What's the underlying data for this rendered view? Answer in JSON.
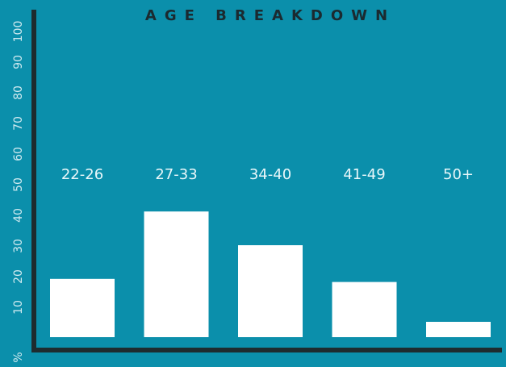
{
  "chart_data": {
    "type": "bar",
    "title": "AGE BREAKDOWN",
    "ylabel": "%",
    "categories": [
      "22-26",
      "27-33",
      "34-40",
      "41-49",
      "50+"
    ],
    "values": [
      19,
      41,
      30,
      18,
      5
    ],
    "ylim": [
      0,
      100
    ],
    "yticks": [
      "10",
      "20",
      "30",
      "40",
      "50",
      "60",
      "70",
      "80",
      "90",
      "100"
    ],
    "grid": false,
    "legend": "none"
  },
  "colors": {
    "background": "#0b8fab",
    "bar": "#ffffff",
    "axis": "#1e2b2e",
    "title": "#1b2a30"
  }
}
